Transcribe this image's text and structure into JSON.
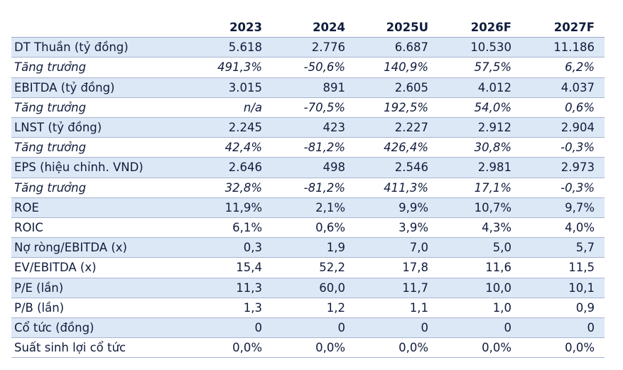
{
  "table": {
    "header": [
      "",
      "2023",
      "2024",
      "2025U",
      "2026F",
      "2027F"
    ],
    "rows": [
      {
        "label": "DT Thuần (tỷ đồng)",
        "values": [
          "5.618",
          "2.776",
          "6.687",
          "10.530",
          "11.186"
        ],
        "italic": false
      },
      {
        "label": "Tăng trưởng",
        "values": [
          "491,3%",
          "-50,6%",
          "140,9%",
          "57,5%",
          "6,2%"
        ],
        "italic": true
      },
      {
        "label": "EBITDA (tỷ đồng)",
        "values": [
          "3.015",
          "891",
          "2.605",
          "4.012",
          "4.037"
        ],
        "italic": false
      },
      {
        "label": "Tăng trưởng",
        "values": [
          "n/a",
          "-70,5%",
          "192,5%",
          "54,0%",
          "0,6%"
        ],
        "italic": true
      },
      {
        "label": "LNST (tỷ đồng)",
        "values": [
          "2.245",
          "423",
          "2.227",
          "2.912",
          "2.904"
        ],
        "italic": false
      },
      {
        "label": "Tăng trưởng",
        "values": [
          "42,4%",
          "-81,2%",
          "426,4%",
          "30,8%",
          "-0,3%"
        ],
        "italic": true
      },
      {
        "label": "EPS (hiệu chỉnh. VND)",
        "values": [
          "2.646",
          "498",
          "2.546",
          "2.981",
          "2.973"
        ],
        "italic": false
      },
      {
        "label": "Tăng trưởng",
        "values": [
          "32,8%",
          "-81,2%",
          "411,3%",
          "17,1%",
          "-0,3%"
        ],
        "italic": true
      },
      {
        "label": "ROE",
        "values": [
          "11,9%",
          "2,1%",
          "9,9%",
          "10,7%",
          "9,7%"
        ],
        "italic": false
      },
      {
        "label": "ROIC",
        "values": [
          "6,1%",
          "0,6%",
          "3,9%",
          "4,3%",
          "4,0%"
        ],
        "italic": false
      },
      {
        "label": "Nợ ròng/EBITDA (x)",
        "values": [
          "0,3",
          "1,9",
          "7,0",
          "5,0",
          "5,7"
        ],
        "italic": false
      },
      {
        "label": "EV/EBITDA (x)",
        "values": [
          "15,4",
          "52,2",
          "17,8",
          "11,6",
          "11,5"
        ],
        "italic": false
      },
      {
        "label": "P/E (lần)",
        "values": [
          "11,3",
          "60,0",
          "11,7",
          "10,0",
          "10,1"
        ],
        "italic": false
      },
      {
        "label": "P/B (lần)",
        "values": [
          "1,3",
          "1,2",
          "1,1",
          "1,0",
          "0,9"
        ],
        "italic": false
      },
      {
        "label": "Cổ tức (đồng)",
        "values": [
          "0",
          "0",
          "0",
          "0",
          "0"
        ],
        "italic": false
      },
      {
        "label": "Suất sinh lợi cổ tức",
        "values": [
          "0,0%",
          "0,0%",
          "0,0%",
          "0,0%",
          "0,0%"
        ],
        "italic": false
      }
    ]
  },
  "colors": {
    "row_band": "#dde8f6",
    "text": "#101c3c",
    "rule": "#a7b5d2"
  }
}
